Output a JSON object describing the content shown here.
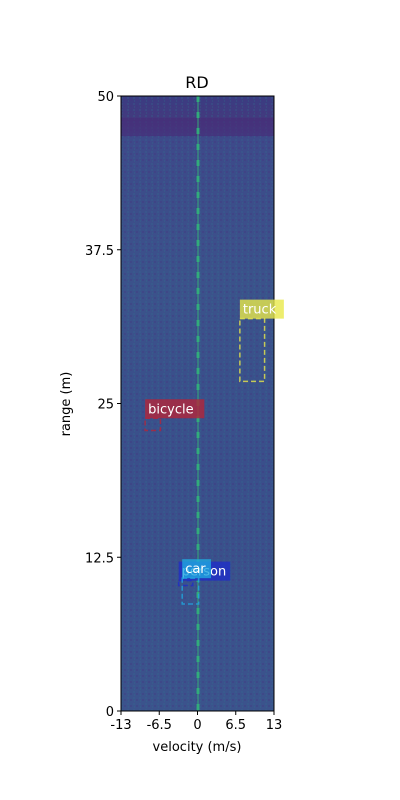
{
  "chart_data": {
    "type": "heatmap",
    "title": "RD",
    "xlabel": "velocity (m/s)",
    "ylabel": "range (m)",
    "xlim": [
      -13,
      13
    ],
    "ylim": [
      0,
      50
    ],
    "xticks": [
      {
        "value": -13,
        "label": "-13"
      },
      {
        "value": -6.5,
        "label": "-6.5"
      },
      {
        "value": 0,
        "label": "0"
      },
      {
        "value": 6.5,
        "label": "6.5"
      },
      {
        "value": 13,
        "label": "13"
      }
    ],
    "yticks": [
      {
        "value": 0,
        "label": "0"
      },
      {
        "value": 12.5,
        "label": "12.5"
      },
      {
        "value": 25,
        "label": "25"
      },
      {
        "value": 37.5,
        "label": "37.5"
      },
      {
        "value": 50,
        "label": "50"
      }
    ],
    "colormap": "viridis",
    "background_color": "#3b4e8c",
    "detections": [
      {
        "label": "truck",
        "color": "#e8e84a",
        "x0": 7.2,
        "x1": 11.4,
        "y0": 26.8,
        "y1": 31.9
      },
      {
        "label": "bicycle",
        "color": "#b3263a",
        "x0": -8.9,
        "x1": -6.3,
        "y0": 22.8,
        "y1": 23.8
      },
      {
        "label": "person",
        "color": "#1f2ec8",
        "x0": -3.2,
        "x1": -0.8,
        "y0": 10.2,
        "y1": 10.6
      },
      {
        "label": "car",
        "color": "#1fa7e0",
        "x0": -2.6,
        "x1": 0.2,
        "y0": 8.7,
        "y1": 10.8
      }
    ]
  }
}
